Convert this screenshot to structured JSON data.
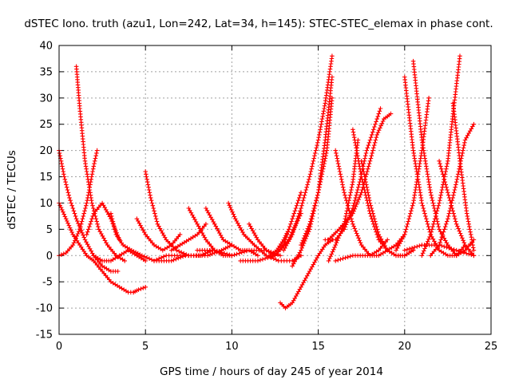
{
  "chart_data": {
    "type": "scatter",
    "title": "dSTEC Iono. truth (azu1, Lon=242, Lat=34, h=145): STEC-STEC_elemax in phase cont.",
    "xlabel": "GPS time / hours of day 245 of year 2014",
    "ylabel": "dSTEC  / TECUs",
    "xlim": [
      0,
      25
    ],
    "ylim": [
      -15,
      40
    ],
    "xticks": [
      "0",
      "5",
      "10",
      "15",
      "20",
      "25"
    ],
    "yticks": [
      "-15",
      "-10",
      "-5",
      "0",
      "5",
      "10",
      "15",
      "20",
      "25",
      "30",
      "35",
      "40"
    ],
    "grid": true,
    "marker": "plus",
    "color": "#ff0000",
    "series": [
      {
        "x": [
          0.0,
          0.3,
          0.6,
          1.0,
          1.5,
          2.0,
          2.5,
          3.0,
          3.4
        ],
        "y": [
          20,
          15,
          11,
          7,
          3,
          0,
          -2,
          -3,
          -3
        ]
      },
      {
        "x": [
          0.0,
          0.4,
          0.8,
          1.2,
          1.6,
          2.0,
          2.5,
          3.0,
          3.5,
          4.0,
          4.3
        ],
        "y": [
          10,
          7,
          4,
          2,
          0,
          -1,
          -3,
          -5,
          -6,
          -7,
          -7
        ]
      },
      {
        "x": [
          0.0,
          0.4,
          0.8,
          1.2,
          1.6,
          2.0,
          2.2
        ],
        "y": [
          0,
          0.5,
          2,
          5,
          10,
          17,
          20
        ]
      },
      {
        "x": [
          1.0,
          1.2,
          1.5,
          1.9,
          2.3,
          2.8,
          3.3,
          3.8
        ],
        "y": [
          36,
          28,
          18,
          10,
          5,
          2,
          0,
          -1
        ]
      },
      {
        "x": [
          1.6,
          2.0,
          2.5,
          3.0,
          3.5
        ],
        "y": [
          4,
          8,
          10,
          7,
          3
        ]
      },
      {
        "x": [
          2.0,
          2.5,
          3.0,
          3.5,
          4.0,
          4.5,
          5.0
        ],
        "y": [
          0,
          -1,
          -1,
          0,
          1,
          0,
          -1
        ]
      },
      {
        "x": [
          3.0,
          3.3,
          3.7,
          4.2,
          4.8,
          5.5,
          6.5,
          7.3
        ],
        "y": [
          8,
          4,
          2,
          1,
          0,
          -1,
          -1,
          0
        ]
      },
      {
        "x": [
          4.3,
          4.6,
          5.0
        ],
        "y": [
          -7,
          -6.5,
          -6
        ]
      },
      {
        "x": [
          5.0,
          5.3,
          5.7,
          6.2,
          6.8,
          7.5,
          8.2,
          8.9
        ],
        "y": [
          16,
          11,
          6,
          3,
          1,
          0,
          0,
          1
        ]
      },
      {
        "x": [
          4.5,
          5.0,
          5.5,
          6.0,
          6.5,
          7.0
        ],
        "y": [
          7,
          4,
          2,
          1,
          2,
          4
        ]
      },
      {
        "x": [
          5.5,
          6.2,
          7.0,
          7.8,
          8.6,
          9.4,
          10.0
        ],
        "y": [
          -1,
          0,
          0,
          0,
          0,
          1,
          2
        ]
      },
      {
        "x": [
          6.5,
          7.0,
          7.5,
          8.0,
          8.5
        ],
        "y": [
          1,
          2,
          3,
          4,
          6
        ]
      },
      {
        "x": [
          7.5,
          8.0,
          8.5,
          9.0,
          9.5,
          10.0
        ],
        "y": [
          9,
          6,
          3,
          1,
          0,
          0
        ]
      },
      {
        "x": [
          8.5,
          9.0,
          9.5,
          10.0,
          10.5,
          11.0,
          11.5
        ],
        "y": [
          9,
          6,
          3,
          2,
          1,
          1,
          0
        ]
      },
      {
        "x": [
          8.0,
          9.0,
          10.0,
          11.0,
          12.0,
          12.8
        ],
        "y": [
          1,
          1,
          0,
          1,
          1,
          0
        ]
      },
      {
        "x": [
          9.8,
          10.2,
          10.7,
          11.3,
          12.0,
          12.7,
          13.5,
          14.0
        ],
        "y": [
          10,
          7,
          4,
          2,
          0,
          -1,
          -1,
          0
        ]
      },
      {
        "x": [
          11.0,
          11.5,
          12.0,
          12.5,
          13.0,
          13.3
        ],
        "y": [
          6,
          3,
          1,
          0,
          2,
          5
        ]
      },
      {
        "x": [
          10.5,
          11.5,
          12.5,
          13.3,
          14.0
        ],
        "y": [
          -1,
          -1,
          0,
          3,
          8
        ]
      },
      {
        "x": [
          12.2,
          12.6,
          13.0,
          13.3,
          13.6,
          14.0
        ],
        "y": [
          0,
          1,
          3,
          5,
          8,
          12
        ]
      },
      {
        "x": [
          12.8,
          13.1,
          13.5,
          14.0,
          14.5,
          15.0,
          15.4,
          15.8
        ],
        "y": [
          -9,
          -10,
          -9,
          -6,
          -3,
          0,
          2,
          3
        ]
      },
      {
        "x": [
          13.0,
          13.5,
          14.0,
          14.5,
          15.0,
          15.4,
          15.8
        ],
        "y": [
          1,
          4,
          9,
          15,
          22,
          29,
          38
        ]
      },
      {
        "x": [
          13.5,
          14.0,
          14.5,
          15.0,
          15.4,
          15.8
        ],
        "y": [
          -2,
          1,
          5,
          12,
          22,
          34
        ]
      },
      {
        "x": [
          14.0,
          14.5,
          15.0,
          15.5,
          15.8
        ],
        "y": [
          2,
          6,
          12,
          20,
          30
        ]
      },
      {
        "x": [
          15.4,
          16.0,
          16.5,
          17.0,
          17.4,
          17.8,
          18.2,
          18.6
        ],
        "y": [
          3,
          3,
          5,
          9,
          14,
          20,
          24,
          28
        ]
      },
      {
        "x": [
          15.6,
          16.2,
          17.0,
          17.5,
          18.0,
          18.4,
          18.8,
          19.2
        ],
        "y": [
          3,
          5,
          8,
          12,
          18,
          23,
          26,
          27
        ]
      },
      {
        "x": [
          15.6,
          16.0,
          16.5,
          17.0,
          17.3
        ],
        "y": [
          -1,
          2,
          6,
          14,
          22
        ]
      },
      {
        "x": [
          16.0,
          16.5,
          17.0,
          17.5,
          18.0,
          18.5,
          19.0,
          19.5,
          20.0
        ],
        "y": [
          20,
          12,
          6,
          2,
          0,
          0,
          1,
          2,
          4
        ]
      },
      {
        "x": [
          17.0,
          17.5,
          18.0,
          18.5,
          19.0,
          19.5,
          20.0,
          20.5
        ],
        "y": [
          24,
          15,
          8,
          3,
          1,
          0,
          0,
          1
        ]
      },
      {
        "x": [
          17.5,
          18.0,
          18.5,
          19.0,
          19.5,
          20.0,
          20.5
        ],
        "y": [
          18,
          10,
          4,
          1,
          0,
          0,
          1
        ]
      },
      {
        "x": [
          16.0,
          17.0,
          18.0,
          18.5,
          19.0
        ],
        "y": [
          -1,
          0,
          0,
          1,
          3
        ]
      },
      {
        "x": [
          19.5,
          20.0,
          20.5,
          21.0,
          21.4
        ],
        "y": [
          1,
          4,
          10,
          20,
          30
        ]
      },
      {
        "x": [
          20.0,
          20.5,
          21.0,
          21.5,
          22.0,
          22.5,
          23.0,
          23.5
        ],
        "y": [
          34,
          20,
          10,
          4,
          1,
          0,
          0,
          2
        ]
      },
      {
        "x": [
          20.5,
          21.0,
          21.5,
          22.0,
          22.5,
          23.0,
          23.5,
          24.0
        ],
        "y": [
          37,
          22,
          12,
          5,
          2,
          0,
          1,
          3
        ]
      },
      {
        "x": [
          21.0,
          21.5,
          22.0,
          22.5,
          22.8,
          23.2
        ],
        "y": [
          0,
          4,
          10,
          18,
          27,
          38
        ]
      },
      {
        "x": [
          21.5,
          22.0,
          22.5,
          23.0,
          23.5,
          24.0
        ],
        "y": [
          0,
          2,
          7,
          14,
          22,
          25
        ]
      },
      {
        "x": [
          22.0,
          22.5,
          23.0,
          23.5,
          24.0
        ],
        "y": [
          18,
          12,
          6,
          2,
          0
        ]
      },
      {
        "x": [
          22.8,
          23.2,
          23.6,
          24.0
        ],
        "y": [
          29,
          18,
          8,
          1
        ]
      },
      {
        "x": [
          20.0,
          21.0,
          22.0,
          23.0,
          24.0
        ],
        "y": [
          1,
          2,
          2,
          1,
          0
        ]
      }
    ]
  }
}
